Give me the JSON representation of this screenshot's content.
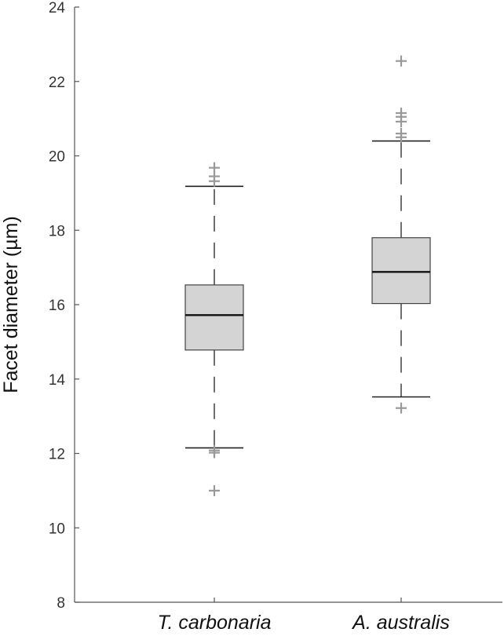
{
  "chart_data": {
    "type": "box",
    "ylabel": "Facet diameter (µm)",
    "ylim": [
      8,
      24
    ],
    "yticks": [
      8,
      10,
      12,
      14,
      16,
      18,
      20,
      22,
      24
    ],
    "categories": [
      "T. carbonaria",
      "A. australis"
    ],
    "boxes": [
      {
        "category": "T. carbonaria",
        "whisker_low": 12.15,
        "q1": 14.78,
        "median": 15.72,
        "q3": 16.53,
        "whisker_high": 19.18,
        "outliers": [
          19.68,
          19.45,
          19.32,
          12.08,
          12.02,
          11.0
        ]
      },
      {
        "category": "A. australis",
        "whisker_low": 13.52,
        "q1": 16.03,
        "median": 16.88,
        "q3": 17.8,
        "whisker_high": 20.4,
        "outliers": [
          22.55,
          21.15,
          21.05,
          20.92,
          20.6,
          20.5,
          13.22
        ]
      }
    ],
    "colors": {
      "box_fill": "#d4d4d4",
      "box_stroke": "#444444",
      "median": "#111111",
      "whisker": "#222222",
      "outlier": "#999999",
      "axis": "#555555"
    }
  }
}
